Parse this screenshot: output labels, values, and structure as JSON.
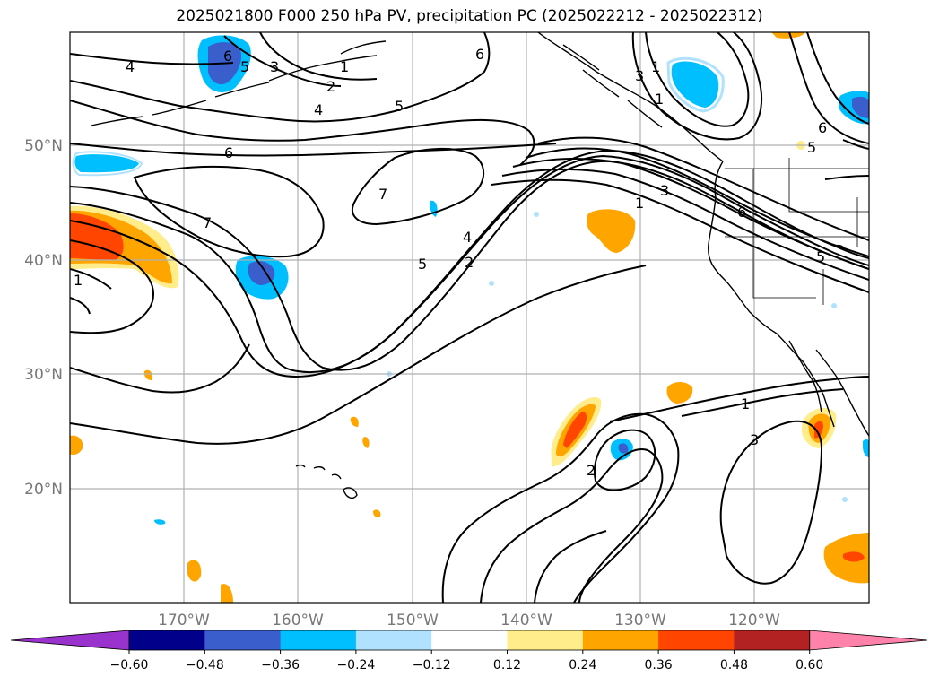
{
  "title": "2025021800 F000 250 hPa PV, precipitation PC (2025022212 - 2025022312)",
  "lat_labels": [
    "50°N",
    "40°N",
    "30°N",
    "20°N"
  ],
  "lon_labels": [
    "170°W",
    "160°W",
    "150°W",
    "140°W",
    "130°W",
    "120°W"
  ],
  "contour_labels": [
    "6",
    "5",
    "3",
    "1",
    "2",
    "4",
    "5",
    "4",
    "6",
    "1",
    "3",
    "1",
    "6",
    "5",
    "6",
    "7",
    "7",
    "4",
    "2",
    "5",
    "1",
    "3",
    "6",
    "5",
    "1",
    "1",
    "3",
    "2"
  ],
  "colorbar": {
    "ticks": [
      "−0.60",
      "−0.48",
      "−0.36",
      "−0.24",
      "−0.12",
      "0.12",
      "0.24",
      "0.36",
      "0.48",
      "0.60"
    ],
    "colors": [
      "#9a32cd",
      "#00008b",
      "#3a5fcd",
      "#00bfff",
      "#b0e2ff",
      "#ffffff",
      "#ffec8b",
      "#ffa500",
      "#ff4500",
      "#b22222",
      "#ff82ab"
    ]
  },
  "colors": {
    "neg_light": "#b0e2ff",
    "neg_mid": "#00bfff",
    "neg_dark": "#3a5fcd",
    "pos_light": "#ffec8b",
    "pos_mid": "#ffa500",
    "pos_dark": "#ff4500",
    "grid": "#b0b0b0"
  }
}
